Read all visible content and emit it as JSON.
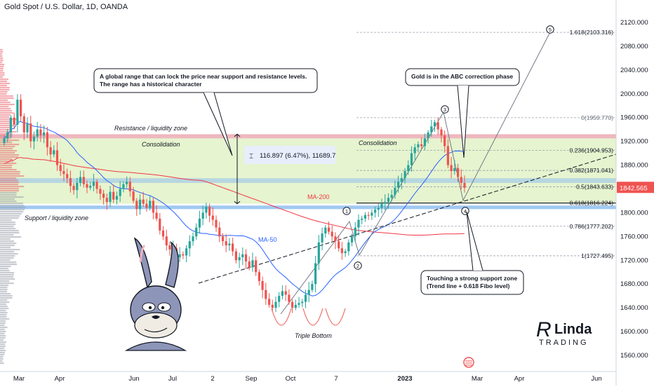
{
  "header": {
    "title": "Gold Spot / U.S. Dollar, 1D, OANDA"
  },
  "chart_data": {
    "type": "candlestick",
    "title": "Gold Spot / U.S. Dollar, 1D, OANDA",
    "ylim": [
      1540,
      2140
    ],
    "y_ticks": [
      "2120.000",
      "2080.000",
      "2040.000",
      "2000.000",
      "1960.000",
      "1920.000",
      "1880.000",
      "1840.000",
      "1800.000",
      "1760.000",
      "1720.000",
      "1680.000",
      "1640.000",
      "1600.000",
      "1560.000"
    ],
    "x_ticks": [
      "Mar",
      "Apr",
      "Jun",
      "Jul",
      "2",
      "Sep",
      "Oct",
      "7",
      "2023",
      "Mar",
      "Apr",
      "Jun"
    ],
    "last_price": "1842.565",
    "close_series": [
      1925,
      1935,
      1960,
      1948,
      1990,
      1962,
      1935,
      1950,
      1920,
      1928,
      1940,
      1930,
      1935,
      1910,
      1898,
      1905,
      1880,
      1870,
      1865,
      1858,
      1845,
      1838,
      1850,
      1860,
      1848,
      1842,
      1845,
      1852,
      1840,
      1832,
      1825,
      1818,
      1835,
      1822,
      1828,
      1840,
      1848,
      1852,
      1836,
      1820,
      1806,
      1822,
      1815,
      1808,
      1820,
      1800,
      1790,
      1770,
      1760,
      1745,
      1738,
      1740,
      1725,
      1730,
      1728,
      1740,
      1752,
      1760,
      1775,
      1790,
      1800,
      1810,
      1795,
      1788,
      1775,
      1760,
      1752,
      1745,
      1748,
      1735,
      1720,
      1725,
      1730,
      1718,
      1708,
      1720,
      1700,
      1685,
      1670,
      1655,
      1645,
      1640,
      1650,
      1660,
      1668,
      1662,
      1650,
      1640,
      1645,
      1648,
      1650,
      1662,
      1670,
      1680,
      1715,
      1750,
      1765,
      1775,
      1768,
      1760,
      1752,
      1740,
      1732,
      1735,
      1750,
      1760,
      1775,
      1788,
      1790,
      1796,
      1795,
      1800,
      1805,
      1808,
      1815,
      1818,
      1825,
      1830,
      1842,
      1852,
      1858,
      1870,
      1880,
      1900,
      1910,
      1915,
      1912,
      1925,
      1935,
      1945,
      1952,
      1940,
      1930,
      1912,
      1880,
      1870,
      1875,
      1860,
      1850,
      1842
    ],
    "annotations": {
      "range_label": "116.897 (6.47%), 11689.7",
      "box_left": "A global range that can lock the price near support and resistance levels.\nThe range has a historical character",
      "box_right": "Gold is in the ABC correction phase",
      "box_support": "Touching a strong support zone\n(Trend line + 0.618 Fibo level)",
      "resistance": "Resistance / liquidity zone",
      "support": "Support / liquidity zone",
      "consolidation_left": "Consolidation",
      "consolidation_right": "Consolidation",
      "triple_bottom": "Triple Bottom",
      "ma200": "MA-200",
      "ma50": "MA-50",
      "waves": [
        "1",
        "2",
        "3",
        "4",
        "5"
      ]
    },
    "fib_levels": [
      {
        "ratio": "1.618",
        "price": 2103.316,
        "label": "1.618(2103.316)"
      },
      {
        "ratio": "0",
        "price": 1959.77,
        "label": "0(1959.770)"
      },
      {
        "ratio": "0.236",
        "price": 1904.953,
        "label": "0.236(1904.953)"
      },
      {
        "ratio": "0.382",
        "price": 1871.041,
        "label": "0.382(1871.041)"
      },
      {
        "ratio": "0.5",
        "price": 1843.633,
        "label": "0.5(1843.633)"
      },
      {
        "ratio": "0.618",
        "price": 1816.224,
        "label": "0.618(1816.224)"
      },
      {
        "ratio": "0.786",
        "price": 1777.202,
        "label": "0.786(1777.202)"
      },
      {
        "ratio": "1",
        "price": 1727.495,
        "label": "1(1727.495)"
      }
    ],
    "zones": {
      "resistance_band": [
        1925,
        1932
      ],
      "consolidation": [
        1815,
        1925
      ],
      "mid_band": [
        1850,
        1858
      ],
      "support_band": [
        1806,
        1812
      ]
    },
    "legend": "none",
    "grid": false
  },
  "logo": {
    "line1": "Linda",
    "line2": "TRADING"
  },
  "colors": {
    "up": "#26a69a",
    "down": "#ef5350",
    "ma200": "#f23645",
    "ma50": "#2962ff",
    "resistance": "#e8a0a8",
    "support": "#90c0ee",
    "consolidation": "#e6f4cf",
    "price_tag": "#ef5350"
  }
}
